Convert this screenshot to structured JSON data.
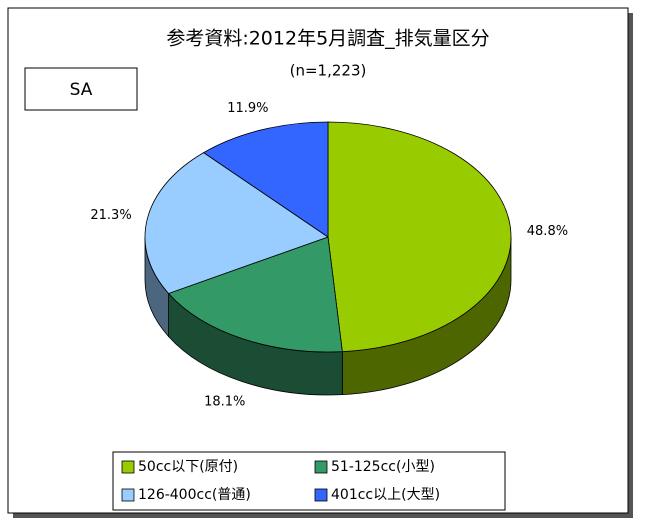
{
  "chart_data": {
    "type": "pie",
    "title": "参考資料:2012年5月調査_排気量区分",
    "subtitle": "(n=1,223)",
    "annotation": "SA",
    "categories": [
      "50cc以下(原付)",
      "51-125cc(小型)",
      "126-400cc(普通)",
      "401cc以上(大型)"
    ],
    "values": [
      48.8,
      18.1,
      21.3,
      11.9
    ],
    "value_labels": [
      "48.8%",
      "18.1%",
      "21.3%",
      "11.9%"
    ],
    "colors": [
      "#99cc00",
      "#339966",
      "#99ccff",
      "#3366ff"
    ],
    "legend": "bottom"
  }
}
